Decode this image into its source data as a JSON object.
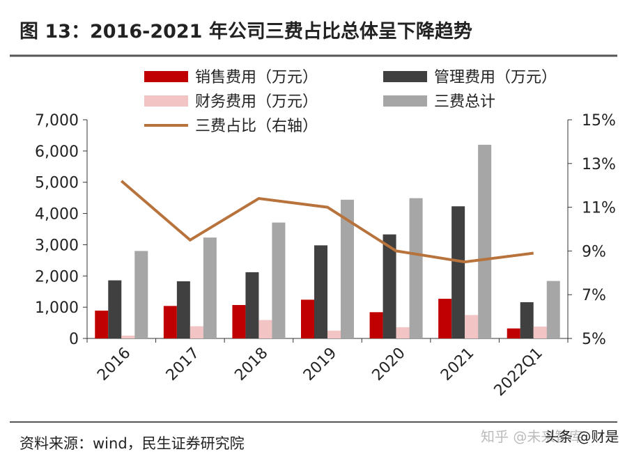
{
  "chart_data": {
    "type": "bar",
    "title": "图 13：2016-2021 年公司三费占比总体呈下降趋势",
    "source": "资料来源：wind，民生证券研究院",
    "watermarks": [
      "知乎 @未来智库",
      "头条 @财是"
    ],
    "categories": [
      "2016",
      "2017",
      "2018",
      "2019",
      "2020",
      "2021",
      "2022Q1"
    ],
    "series": [
      {
        "name": "销售费用（万元）",
        "type": "bar",
        "color": "#c00000",
        "values": [
          890,
          1040,
          1070,
          1240,
          840,
          1270,
          320
        ]
      },
      {
        "name": "管理费用（万元）",
        "type": "bar",
        "color": "#404040",
        "values": [
          1860,
          1830,
          2120,
          2980,
          3330,
          4230,
          1160
        ]
      },
      {
        "name": "财务费用（万元）",
        "type": "bar",
        "color": "#f2c4c4",
        "values": [
          90,
          390,
          590,
          250,
          360,
          750,
          380
        ]
      },
      {
        "name": "三费总计",
        "type": "bar",
        "color": "#a6a6a6",
        "values": [
          2800,
          3230,
          3710,
          4440,
          4490,
          6200,
          1840
        ]
      },
      {
        "name": "三费占比（右轴）",
        "type": "line",
        "axis": "y2",
        "color": "#b8733c",
        "values": [
          12.2,
          9.5,
          11.4,
          11.0,
          9.0,
          8.5,
          8.9
        ]
      }
    ],
    "ylim": [
      0,
      7000
    ],
    "yticks": [
      0,
      {
        "value": 1000,
        "label": "1,000"
      },
      {
        "value": 2000,
        "label": "2,000"
      },
      {
        "value": 3000,
        "label": "3,000"
      },
      {
        "value": 4000,
        "label": "4,000"
      },
      {
        "value": 5000,
        "label": "5,000"
      },
      {
        "value": 6000,
        "label": "6,000"
      },
      {
        "value": 7000,
        "label": "7,000"
      }
    ],
    "y2lim": [
      5,
      15
    ],
    "y2ticks": [
      {
        "value": 5,
        "label": "5%"
      },
      {
        "value": 7,
        "label": "7%"
      },
      {
        "value": 9,
        "label": "9%"
      },
      {
        "value": 11,
        "label": "11%"
      },
      {
        "value": 13,
        "label": "13%"
      },
      {
        "value": 15,
        "label": "15%"
      }
    ]
  }
}
